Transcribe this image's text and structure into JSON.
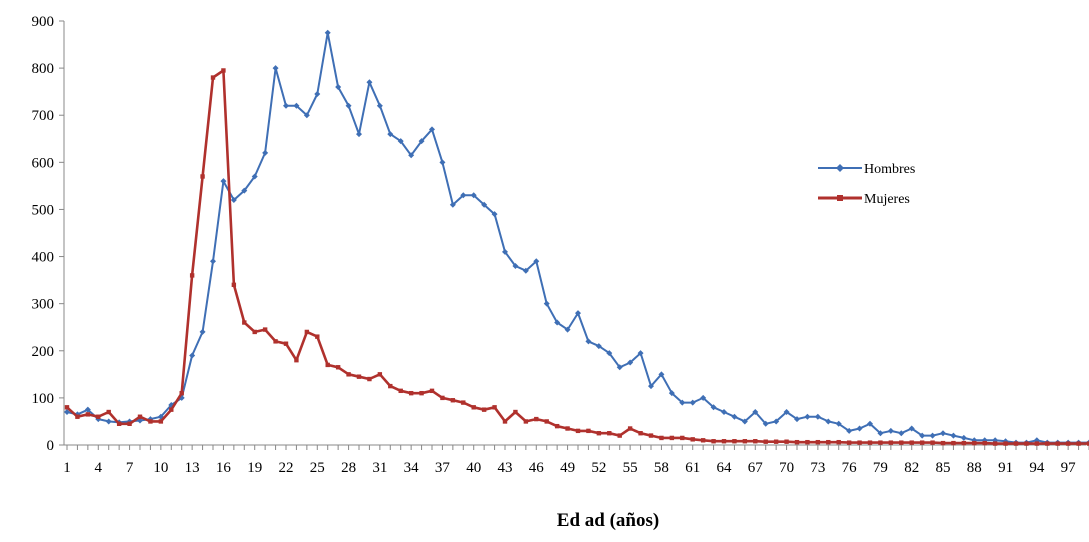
{
  "chart_data": {
    "type": "line",
    "title": "",
    "xlabel": "Ed ad (años)",
    "ylabel": "",
    "ylim": [
      0,
      900
    ],
    "yticks": [
      0,
      100,
      200,
      300,
      400,
      500,
      600,
      700,
      800,
      900
    ],
    "xticks": [
      1,
      4,
      7,
      10,
      13,
      16,
      19,
      22,
      25,
      28,
      31,
      34,
      37,
      40,
      43,
      46,
      49,
      52,
      55,
      58,
      61,
      64,
      67,
      70,
      73,
      76,
      79,
      82,
      85,
      88,
      91,
      94,
      97
    ],
    "grid": false,
    "legend": "right",
    "x": [
      1,
      2,
      3,
      4,
      5,
      6,
      7,
      8,
      9,
      10,
      11,
      12,
      13,
      14,
      15,
      16,
      17,
      18,
      19,
      20,
      21,
      22,
      23,
      24,
      25,
      26,
      27,
      28,
      29,
      30,
      31,
      32,
      33,
      34,
      35,
      36,
      37,
      38,
      39,
      40,
      41,
      42,
      43,
      44,
      45,
      46,
      47,
      48,
      49,
      50,
      51,
      52,
      53,
      54,
      55,
      56,
      57,
      58,
      59,
      60,
      61,
      62,
      63,
      64,
      65,
      66,
      67,
      68,
      69,
      70,
      71,
      72,
      73,
      74,
      75,
      76,
      77,
      78,
      79,
      80,
      81,
      82,
      83,
      84,
      85,
      86,
      87,
      88,
      89,
      90,
      91,
      92,
      93,
      94,
      95,
      96,
      97,
      98,
      99
    ],
    "series": [
      {
        "name": "Hombres",
        "color": "#3f6fb5",
        "marker": "diamond",
        "values": [
          70,
          65,
          75,
          55,
          50,
          48,
          50,
          52,
          55,
          60,
          85,
          100,
          190,
          240,
          390,
          560,
          520,
          540,
          570,
          620,
          800,
          720,
          720,
          700,
          745,
          875,
          760,
          720,
          660,
          770,
          720,
          660,
          645,
          615,
          645,
          670,
          600,
          510,
          530,
          530,
          510,
          490,
          410,
          380,
          370,
          390,
          300,
          260,
          245,
          280,
          220,
          210,
          195,
          165,
          175,
          195,
          125,
          150,
          110,
          90,
          90,
          100,
          80,
          70,
          60,
          50,
          70,
          45,
          50,
          70,
          55,
          60,
          60,
          50,
          45,
          30,
          35,
          45,
          25,
          30,
          25,
          35,
          20,
          20,
          25,
          20,
          15,
          10,
          10,
          10,
          8,
          5,
          5,
          10,
          5,
          5,
          5,
          5,
          5
        ]
      },
      {
        "name": "Mujeres",
        "color": "#b0312d",
        "marker": "square",
        "values": [
          80,
          60,
          65,
          60,
          70,
          45,
          45,
          60,
          50,
          50,
          75,
          110,
          360,
          570,
          780,
          795,
          340,
          260,
          240,
          245,
          220,
          215,
          180,
          240,
          230,
          170,
          165,
          150,
          145,
          140,
          150,
          125,
          115,
          110,
          110,
          115,
          100,
          95,
          90,
          80,
          75,
          80,
          50,
          70,
          50,
          55,
          50,
          40,
          35,
          30,
          30,
          25,
          25,
          20,
          35,
          25,
          20,
          15,
          15,
          15,
          12,
          10,
          8,
          8,
          8,
          8,
          8,
          7,
          7,
          7,
          6,
          6,
          6,
          6,
          6,
          5,
          5,
          5,
          5,
          5,
          5,
          5,
          5,
          5,
          4,
          4,
          4,
          4,
          4,
          3,
          3,
          3,
          3,
          3,
          3,
          3,
          3,
          3,
          3
        ]
      }
    ]
  }
}
